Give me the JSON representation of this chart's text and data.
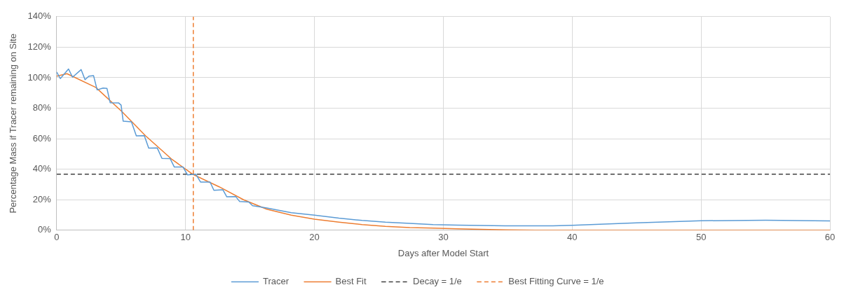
{
  "chart_data": {
    "type": "line",
    "xlabel": "Days after Model Start",
    "ylabel": "Percentage Mass if Tracer remaining on Site",
    "xlim": [
      0,
      60
    ],
    "xticks": [
      0,
      10,
      20,
      30,
      40,
      50,
      60
    ],
    "ylim": [
      0,
      140
    ],
    "yticks": [
      {
        "value": 0,
        "label": "0%"
      },
      {
        "value": 20,
        "label": "20%"
      },
      {
        "value": 40,
        "label": "40%"
      },
      {
        "value": 60,
        "label": "60%"
      },
      {
        "value": 80,
        "label": "80%"
      },
      {
        "value": 100,
        "label": "100%"
      },
      {
        "value": 120,
        "label": "120%"
      },
      {
        "value": 140,
        "label": "140%"
      }
    ],
    "grid": true,
    "legend": "bottom",
    "marker": "none",
    "line_style": "solid",
    "series": [
      {
        "name": "Tracer",
        "color": "#5b9bd5",
        "x": [
          0,
          0.28,
          0.92,
          1.23,
          1.9,
          2.2,
          2.5,
          2.86,
          3.14,
          3.6,
          3.9,
          4.15,
          4.8,
          5.0,
          5.16,
          5.8,
          6.18,
          6.8,
          7.14,
          7.8,
          8.17,
          8.8,
          9.13,
          9.8,
          10.15,
          10.8,
          11.16,
          11.9,
          12.2,
          12.9,
          13.2,
          13.9,
          14.2,
          14.9,
          15.2,
          16.3,
          18.2,
          20,
          21.9,
          23.7,
          25.5,
          27.4,
          29.2,
          31.1,
          34.8,
          38.5,
          40,
          45,
          50,
          55,
          60
        ],
        "values": [
          103.7,
          99.4,
          105.7,
          100.3,
          105.3,
          98.7,
          101,
          101.4,
          92,
          93.2,
          93,
          83.6,
          83.5,
          82,
          71.5,
          71,
          61.9,
          62,
          53.8,
          54,
          47.1,
          47,
          41.4,
          41.5,
          36.3,
          36.7,
          31.6,
          31.6,
          26.2,
          26.5,
          21.9,
          22,
          18.8,
          18.5,
          16.1,
          14.6,
          11.5,
          9.9,
          7.9,
          6.4,
          5.3,
          4.5,
          3.7,
          3.3,
          2.9,
          2.9,
          3.2,
          4.8,
          6.2,
          6.6,
          6.1
        ]
      },
      {
        "name": "Best Fit",
        "color": "#ed7d31",
        "x": [
          0,
          0.8,
          3.04,
          5.07,
          6.9,
          8.95,
          10.6,
          12.6,
          14.5,
          16.3,
          18.2,
          20,
          21.9,
          23.7,
          25.5,
          27.4,
          29.2,
          31.1,
          34.8,
          38.5,
          60
        ],
        "values": [
          101,
          102.6,
          93.6,
          77.7,
          61.9,
          46.4,
          36.5,
          28.5,
          20,
          13.8,
          9.9,
          7.3,
          5.3,
          3.7,
          2.6,
          1.8,
          1.4,
          0.9,
          0.2,
          0,
          0
        ]
      },
      {
        "name": "Decay = 1/e",
        "color": "#404040",
        "line_style": "dashed",
        "x": [
          0,
          60
        ],
        "values": [
          36.8,
          36.8
        ]
      },
      {
        "name": "Best Fitting Curve = 1/e",
        "color": "#ed7d31",
        "line_style": "dashed",
        "x": [
          10.6,
          10.6
        ],
        "values": [
          0,
          140
        ]
      }
    ]
  }
}
